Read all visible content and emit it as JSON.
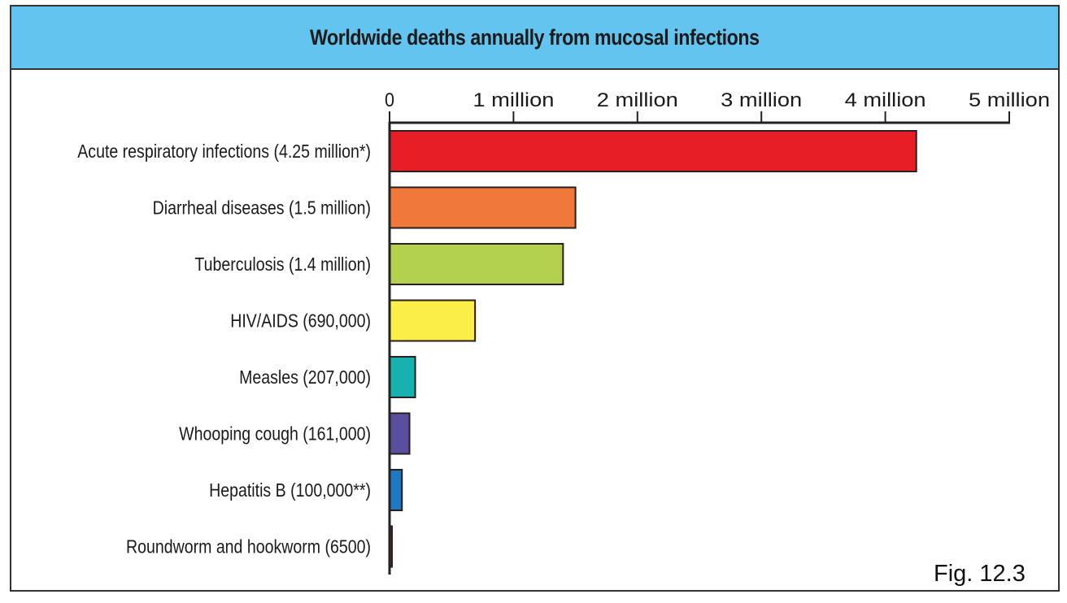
{
  "chart_data": {
    "type": "bar",
    "orientation": "horizontal",
    "title": "Worldwide deaths annually from mucosal infections",
    "xlabel": "",
    "ylabel": "",
    "xlim": [
      0,
      5000000
    ],
    "x_ticks": [
      0,
      1000000,
      2000000,
      3000000,
      4000000,
      5000000
    ],
    "x_tick_labels": [
      "0",
      "1 million",
      "2 million",
      "3 million",
      "4 million",
      "5 million"
    ],
    "categories": [
      "Acute respiratory infections (4.25 million*)",
      "Diarrheal diseases (1.5 million)",
      "Tuberculosis (1.4 million)",
      "HIV/AIDS (690,000)",
      "Measles (207,000)",
      "Whooping cough (161,000)",
      "Hepatitis B (100,000**)",
      "Roundworm and hookworm (6500)"
    ],
    "values": [
      4250000,
      1500000,
      1400000,
      690000,
      207000,
      161000,
      100000,
      6500
    ],
    "colors": [
      "#e81e26",
      "#f0783a",
      "#b3d04e",
      "#fbee47",
      "#15b2af",
      "#5a4f9e",
      "#1e78c2",
      "#7a3b22"
    ],
    "grid": false,
    "legend": "none"
  },
  "header_color": "#62c4ef",
  "figure_label": "Fig. 12.3"
}
